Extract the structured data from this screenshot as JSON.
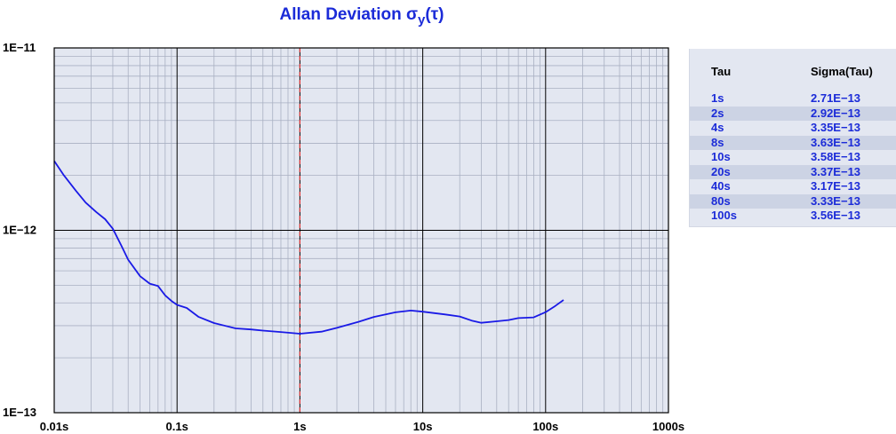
{
  "chart_data": {
    "type": "line",
    "title": "Allan Deviation σ",
    "title_sub": "y",
    "title_arg": "(τ)",
    "x_scale": "log",
    "y_scale": "log",
    "xlim": [
      0.01,
      1000
    ],
    "ylim": [
      1e-13,
      1e-11
    ],
    "x_ticks": [
      0.01,
      0.1,
      1,
      10,
      100,
      1000
    ],
    "x_tick_labels": [
      "0.01s",
      "0.1s",
      "1s",
      "10s",
      "100s",
      "1000s"
    ],
    "y_ticks": [
      1e-13,
      1e-12,
      1e-11
    ],
    "y_tick_labels": [
      "1E−13",
      "1E−12",
      "1E−11"
    ],
    "grid": true,
    "reference_line_x": 1,
    "series": [
      {
        "x": [
          0.01,
          0.012,
          0.015,
          0.018,
          0.022,
          0.026,
          0.03,
          0.035,
          0.04,
          0.05,
          0.06,
          0.07,
          0.08,
          0.09,
          0.1,
          0.12,
          0.15,
          0.2,
          0.3,
          0.4,
          0.5,
          0.7,
          1,
          1.5,
          2,
          3,
          4,
          6,
          8,
          10,
          15,
          20,
          25,
          30,
          40,
          50,
          60,
          80,
          100,
          120,
          140
        ],
        "y": [
          2.4e-12,
          2e-12,
          1.65e-12,
          1.42e-12,
          1.26e-12,
          1.15e-12,
          1.02e-12,
          8.3e-13,
          6.9e-13,
          5.6e-13,
          5.1e-13,
          4.95e-13,
          4.4e-13,
          4.1e-13,
          3.9e-13,
          3.75e-13,
          3.35e-13,
          3.1e-13,
          2.9e-13,
          2.86e-13,
          2.82e-13,
          2.77e-13,
          2.71e-13,
          2.78e-13,
          2.92e-13,
          3.15e-13,
          3.35e-13,
          3.55e-13,
          3.63e-13,
          3.58e-13,
          3.46e-13,
          3.37e-13,
          3.2e-13,
          3.11e-13,
          3.17e-13,
          3.22e-13,
          3.3e-13,
          3.33e-13,
          3.56e-13,
          3.85e-13,
          4.15e-13
        ]
      }
    ]
  },
  "stats_table": {
    "headers": [
      "Tau",
      "Sigma(Tau)"
    ],
    "rows": [
      [
        "1s",
        "2.71E−13"
      ],
      [
        "2s",
        "2.92E−13"
      ],
      [
        "4s",
        "3.35E−13"
      ],
      [
        "8s",
        "3.63E−13"
      ],
      [
        "10s",
        "3.58E−13"
      ],
      [
        "20s",
        "3.37E−13"
      ],
      [
        "40s",
        "3.17E−13"
      ],
      [
        "80s",
        "3.33E−13"
      ],
      [
        "100s",
        "3.56E−13"
      ]
    ]
  },
  "colors": {
    "plot_bg": "#e3e7f1",
    "curve": "#1a1ae6",
    "title": "#1b2bd8",
    "table_text": "#1b2bd8",
    "reference_line": "#e03030",
    "minor_grid": "#a9b0c2",
    "major_grid": "#000000"
  }
}
